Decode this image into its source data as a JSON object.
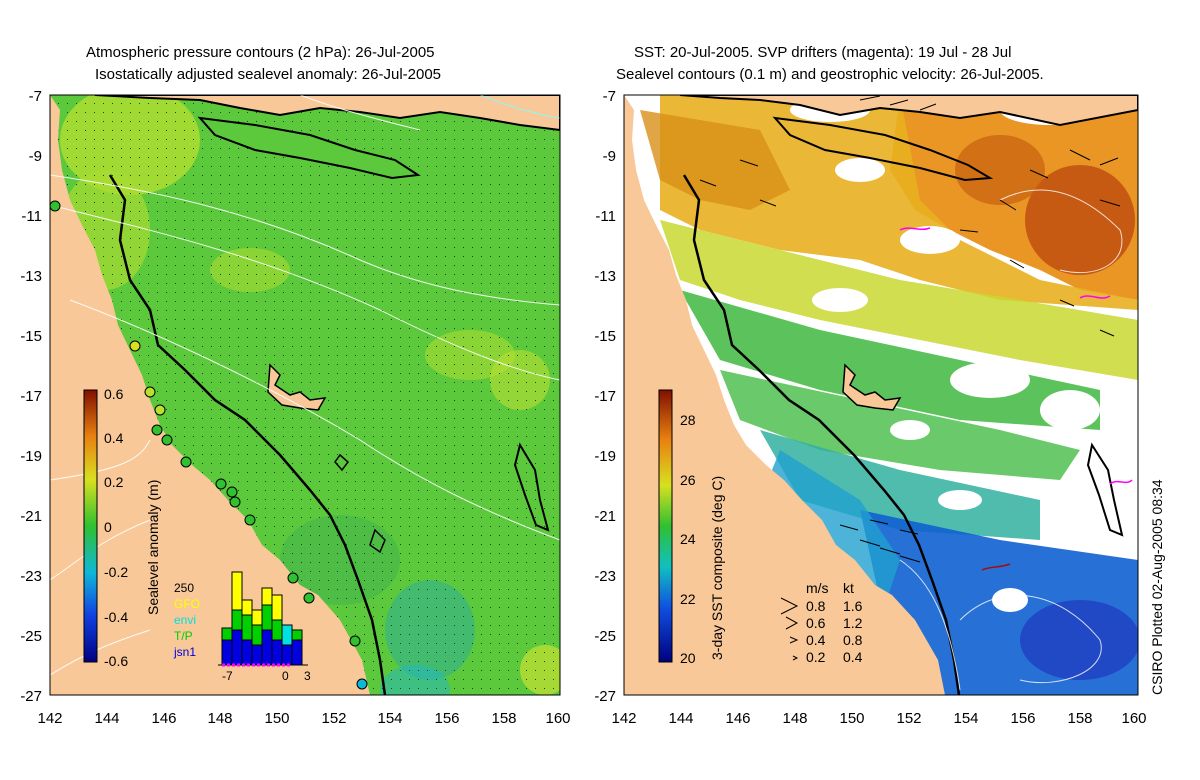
{
  "left_panel": {
    "title_line1": "Atmospheric pressure contours (2 hPa): 26-Jul-2005",
    "title_line2": "Isostatically adjusted sealevel anomaly: 26-Jul-2005",
    "colorbar": {
      "label": "Sealevel anomaly (m)",
      "ticks": [
        "0.6",
        "0.4",
        "0.2",
        "0",
        "-0.2",
        "-0.4",
        "-0.6"
      ]
    },
    "inset": {
      "legend": [
        "250",
        "GFO",
        "envi",
        "T/P",
        "jsn1"
      ],
      "legend_colors": [
        "#000000",
        "#ffff00",
        "#00e0e0",
        "#00d000",
        "#0000e0"
      ],
      "xticks": [
        "-7",
        "0",
        "3"
      ]
    }
  },
  "right_panel": {
    "title_line1": "SST: 20-Jul-2005. SVP drifters (magenta): 19 Jul - 28 Jul",
    "title_line2": "Sealevel contours (0.1 m) and geostrophic velocity: 26-Jul-2005.",
    "colorbar": {
      "label": "3-day SST composite (deg C)",
      "ticks": [
        "28",
        "26",
        "24",
        "22",
        "20"
      ]
    },
    "velocity_legend": {
      "header_ms": "m/s",
      "header_kt": "kt",
      "rows": [
        {
          "ms": "0.8",
          "kt": "1.6"
        },
        {
          "ms": "0.6",
          "kt": "1.2"
        },
        {
          "ms": "0.4",
          "kt": "0.8"
        },
        {
          "ms": "0.2",
          "kt": "0.4"
        }
      ]
    },
    "footer": "CSIRO Plotted 02-Aug-2005 08:34"
  },
  "axes": {
    "lat_ticks": [
      "-7",
      "-9",
      "-11",
      "-13",
      "-15",
      "-17",
      "-19",
      "-21",
      "-23",
      "-25",
      "-27"
    ],
    "lon_ticks": [
      "142",
      "144",
      "146",
      "148",
      "150",
      "152",
      "154",
      "156",
      "158",
      "160"
    ]
  },
  "colors": {
    "land": "#f8c898",
    "sea_base": "#5cc83c",
    "sst_warm": "#e8a020",
    "sst_cool": "#1060d0"
  }
}
